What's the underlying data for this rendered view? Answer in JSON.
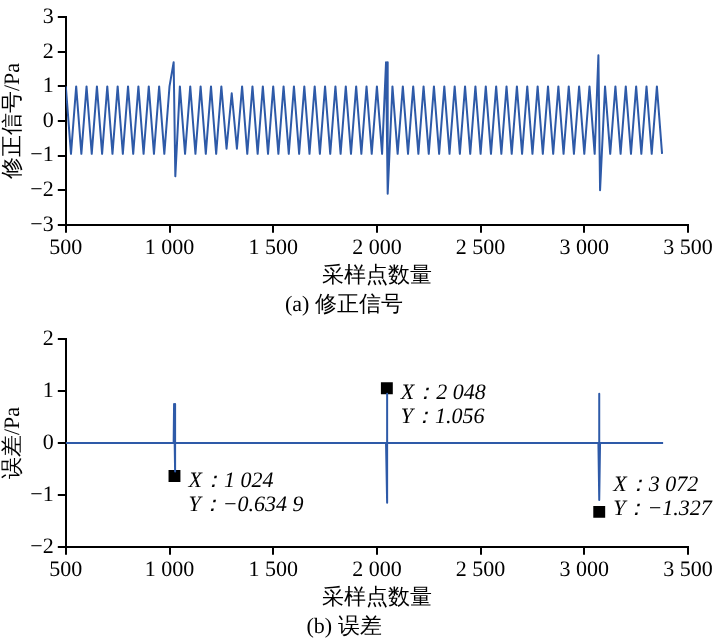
{
  "chart_data": [
    {
      "type": "line",
      "title": "(a) 修正信号",
      "xlabel": "采样点数量",
      "ylabel": "修正信号/Pa",
      "xlim": [
        500,
        3500
      ],
      "xticks": [
        500,
        {
          "value": 1000,
          "label": "1 000"
        },
        {
          "value": 1500,
          "label": "1 500"
        },
        {
          "value": 2000,
          "label": "2 000"
        },
        {
          "value": 2500,
          "label": "2 500"
        },
        {
          "value": 3000,
          "label": "3 000"
        },
        {
          "value": 3500,
          "label": "3 500"
        }
      ],
      "ylim": [
        -3,
        3
      ],
      "yticks": [
        -3,
        -2,
        -1,
        0,
        1,
        2,
        3
      ],
      "grid": false,
      "legend": false,
      "marker": "none",
      "series": [
        {
          "color": "#2e5aa8",
          "x": [
            500,
            525,
            550,
            575,
            600,
            625,
            650,
            675,
            700,
            725,
            750,
            775,
            800,
            825,
            850,
            875,
            900,
            925,
            950,
            975,
            1000,
            1020,
            1028,
            1050,
            1075,
            1100,
            1125,
            1150,
            1175,
            1200,
            1225,
            1250,
            1275,
            1300,
            1325,
            1350,
            1375,
            1400,
            1425,
            1450,
            1475,
            1500,
            1525,
            1550,
            1575,
            1600,
            1625,
            1650,
            1675,
            1700,
            1725,
            1750,
            1775,
            1800,
            1825,
            1850,
            1875,
            1900,
            1925,
            1950,
            1975,
            2000,
            2025,
            2044,
            2052,
            2075,
            2100,
            2125,
            2150,
            2175,
            2200,
            2225,
            2250,
            2275,
            2300,
            2325,
            2350,
            2375,
            2400,
            2425,
            2450,
            2475,
            2500,
            2525,
            2550,
            2575,
            2600,
            2625,
            2650,
            2675,
            2700,
            2725,
            2750,
            2775,
            2800,
            2825,
            2850,
            2875,
            2900,
            2925,
            2950,
            2975,
            3000,
            3025,
            3050,
            3068,
            3076,
            3100,
            3125,
            3150,
            3175,
            3200,
            3225,
            3250,
            3275,
            3300,
            3325,
            3350,
            3375
          ],
          "values": [
            1,
            -0.95,
            1,
            -0.95,
            1,
            -0.95,
            1,
            -0.95,
            1,
            -0.95,
            1,
            -0.95,
            1,
            -0.95,
            1,
            -0.95,
            1,
            -0.95,
            1,
            -0.95,
            1,
            1.7,
            -1.6,
            1,
            -0.95,
            1,
            -0.95,
            1,
            -0.95,
            1,
            -0.95,
            1,
            -0.8,
            0.8,
            -0.8,
            1,
            -0.95,
            1,
            -0.95,
            1,
            -0.95,
            1,
            -0.95,
            1,
            -0.95,
            1,
            -0.95,
            1,
            -0.95,
            1,
            -0.95,
            1,
            -0.95,
            1,
            -0.95,
            1,
            -0.95,
            1,
            -0.95,
            1,
            -0.95,
            1,
            -0.95,
            1.7,
            -2.1,
            1,
            -0.95,
            1,
            -0.95,
            1,
            -0.95,
            1,
            -0.95,
            1,
            -0.95,
            1,
            -0.95,
            1,
            -0.95,
            1,
            -0.95,
            1,
            -0.95,
            1,
            -0.95,
            1,
            -0.95,
            1,
            -0.95,
            1,
            -0.95,
            1,
            -0.95,
            1,
            -0.95,
            1,
            -0.95,
            1,
            -0.95,
            1,
            -0.95,
            1,
            -0.95,
            1,
            -0.95,
            1.9,
            -2.0,
            1,
            -0.95,
            1,
            -0.95,
            1,
            -0.95,
            1,
            -0.95,
            1,
            -0.95,
            1,
            -0.95
          ]
        }
      ]
    },
    {
      "type": "line",
      "title": "(b) 误差",
      "xlabel": "采样点数量",
      "ylabel": "误差/Pa",
      "xlim": [
        500,
        3500
      ],
      "xticks": [
        500,
        {
          "value": 1000,
          "label": "1 000"
        },
        {
          "value": 1500,
          "label": "1 500"
        },
        {
          "value": 2000,
          "label": "2 000"
        },
        {
          "value": 2500,
          "label": "2 500"
        },
        {
          "value": 3000,
          "label": "3 000"
        },
        {
          "value": 3500,
          "label": "3 500"
        }
      ],
      "ylim": [
        -2,
        2
      ],
      "yticks": [
        -2,
        -1,
        0,
        1,
        2
      ],
      "grid": false,
      "legend": false,
      "marker": "none",
      "series": [
        {
          "type": "line",
          "color": "#2e5aa8",
          "x": [
            500,
            1020,
            1022,
            1026,
            1028,
            2044,
            2046,
            2050,
            2052,
            3068,
            3070,
            3074,
            3076,
            3380
          ],
          "values": [
            0,
            0,
            0.75,
            -0.55,
            0,
            0,
            0.95,
            -1.15,
            0,
            0,
            0.95,
            -1.1,
            0,
            0
          ]
        },
        {
          "type": "scatter",
          "marker": "square",
          "color": "#000000",
          "x": [
            1024,
            2048,
            3072
          ],
          "values": [
            -0.6349,
            1.056,
            -1.327
          ]
        }
      ],
      "annotations": [
        {
          "text": "X：1 024\nY：−0.634 9",
          "x": 1024,
          "y": -0.6349
        },
        {
          "text": "X：2 048\nY：1.056",
          "x": 2048,
          "y": 1.056
        },
        {
          "text": "X：3 072\nY：−1.327",
          "x": 3072,
          "y": -1.327
        }
      ]
    }
  ]
}
